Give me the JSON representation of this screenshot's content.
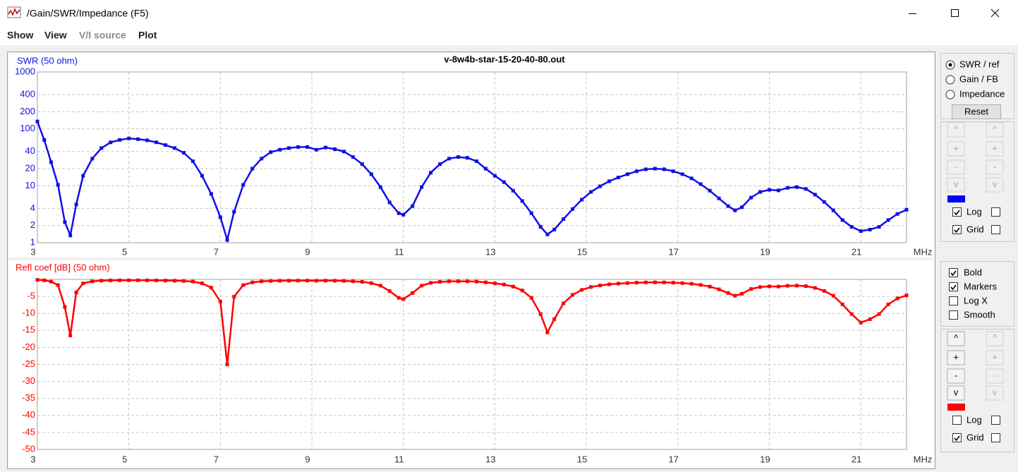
{
  "window": {
    "title": "/Gain/SWR/Impedance (F5)",
    "menu": [
      {
        "label": "Show",
        "enabled": true
      },
      {
        "label": "View",
        "enabled": true
      },
      {
        "label": "V/I source",
        "enabled": false
      },
      {
        "label": "Plot",
        "enabled": true
      }
    ]
  },
  "chart_data": [
    {
      "type": "line",
      "title": "v-8w4b-star-15-20-40-80.out",
      "y_label": "SWR (50 ohm)",
      "x_label": "MHz",
      "color": "#1010e6",
      "log": true,
      "grid": true,
      "xlim": [
        3,
        22
      ],
      "xticks": [
        3,
        5,
        7,
        9,
        11,
        13,
        15,
        17,
        19,
        21
      ],
      "ylim": [
        1,
        1000
      ],
      "yticks": [
        1,
        2,
        4,
        10,
        20,
        40,
        100,
        200,
        400,
        1000
      ],
      "x": [
        3,
        3.15,
        3.3,
        3.45,
        3.6,
        3.72,
        3.85,
        4,
        4.2,
        4.4,
        4.6,
        4.8,
        5,
        5.2,
        5.4,
        5.6,
        5.8,
        6,
        6.2,
        6.4,
        6.6,
        6.8,
        7,
        7.15,
        7.3,
        7.5,
        7.7,
        7.9,
        8.1,
        8.3,
        8.5,
        8.7,
        8.9,
        9.1,
        9.3,
        9.5,
        9.7,
        9.9,
        10.1,
        10.3,
        10.5,
        10.7,
        10.9,
        11,
        11.2,
        11.4,
        11.6,
        11.8,
        12,
        12.2,
        12.4,
        12.6,
        12.8,
        13,
        13.2,
        13.4,
        13.6,
        13.8,
        14,
        14.15,
        14.3,
        14.5,
        14.7,
        14.9,
        15.1,
        15.3,
        15.5,
        15.7,
        15.9,
        16.1,
        16.3,
        16.5,
        16.7,
        16.9,
        17.1,
        17.3,
        17.5,
        17.7,
        17.9,
        18.1,
        18.25,
        18.4,
        18.6,
        18.8,
        19,
        19.2,
        19.4,
        19.6,
        19.8,
        20,
        20.2,
        20.4,
        20.6,
        20.8,
        21,
        21.2,
        21.4,
        21.6,
        21.8,
        22
      ],
      "values": [
        135,
        64,
        26,
        10.4,
        2.3,
        1.35,
        4.7,
        15,
        30,
        46,
        58,
        64,
        68,
        66,
        63,
        58,
        52,
        46,
        38,
        27,
        15,
        7.2,
        2.8,
        1.12,
        3.5,
        10.4,
        20,
        30,
        39,
        43,
        46,
        48,
        48,
        43,
        47,
        44,
        40,
        32,
        24,
        16,
        9.5,
        5.1,
        3.3,
        3.1,
        4.4,
        9.5,
        17,
        24,
        30,
        32,
        31,
        27,
        20,
        15,
        11.6,
        8.2,
        5.4,
        3.3,
        1.9,
        1.4,
        1.7,
        2.6,
        3.9,
        5.7,
        7.8,
        9.8,
        12,
        14,
        16,
        18,
        19.5,
        20,
        19.5,
        18,
        16,
        13.5,
        10.7,
        8.2,
        6.0,
        4.4,
        3.7,
        4.2,
        6.2,
        7.8,
        8.5,
        8.3,
        9.2,
        9.5,
        8.8,
        7.0,
        5.2,
        3.7,
        2.5,
        1.9,
        1.6,
        1.7,
        1.9,
        2.5,
        3.2,
        3.8
      ]
    },
    {
      "type": "line",
      "y_label": "Refl coef [dB] (50 ohm)",
      "x_label": "MHz",
      "color": "#ff0000",
      "log": false,
      "grid": true,
      "xlim": [
        3,
        22
      ],
      "xticks": [
        3,
        5,
        7,
        9,
        11,
        13,
        15,
        17,
        19,
        21
      ],
      "ylim": [
        -50,
        0
      ],
      "yticks": [
        -50,
        -45,
        -40,
        -35,
        -30,
        -25,
        -20,
        -15,
        -10,
        -5
      ],
      "x": [
        3,
        3.15,
        3.3,
        3.45,
        3.6,
        3.72,
        3.85,
        4,
        4.2,
        4.4,
        4.6,
        4.8,
        5,
        5.2,
        5.4,
        5.6,
        5.8,
        6,
        6.2,
        6.4,
        6.6,
        6.8,
        7,
        7.15,
        7.3,
        7.5,
        7.7,
        7.9,
        8.1,
        8.3,
        8.5,
        8.7,
        8.9,
        9.1,
        9.3,
        9.5,
        9.7,
        9.9,
        10.1,
        10.3,
        10.5,
        10.7,
        10.9,
        11,
        11.2,
        11.4,
        11.6,
        11.8,
        12,
        12.2,
        12.4,
        12.6,
        12.8,
        13,
        13.2,
        13.4,
        13.6,
        13.8,
        14,
        14.15,
        14.3,
        14.5,
        14.7,
        14.9,
        15.1,
        15.3,
        15.5,
        15.7,
        15.9,
        16.1,
        16.3,
        16.5,
        16.7,
        16.9,
        17.1,
        17.3,
        17.5,
        17.7,
        17.9,
        18.1,
        18.25,
        18.4,
        18.6,
        18.8,
        19,
        19.2,
        19.4,
        19.6,
        19.8,
        20,
        20.2,
        20.4,
        20.6,
        20.8,
        21,
        21.2,
        21.4,
        21.6,
        21.8,
        22
      ],
      "values": [
        -0.13,
        -0.27,
        -0.67,
        -1.67,
        -8.1,
        -16.5,
        -3.8,
        -1.16,
        -0.58,
        -0.38,
        -0.3,
        -0.27,
        -0.26,
        -0.26,
        -0.28,
        -0.3,
        -0.34,
        -0.38,
        -0.46,
        -0.64,
        -1.16,
        -2.43,
        -6.5,
        -25,
        -5.1,
        -1.67,
        -0.87,
        -0.58,
        -0.45,
        -0.4,
        -0.38,
        -0.36,
        -0.36,
        -0.4,
        -0.37,
        -0.39,
        -0.43,
        -0.55,
        -0.72,
        -1.09,
        -1.84,
        -3.45,
        -5.43,
        -5.8,
        -4.0,
        -1.84,
        -1.02,
        -0.72,
        -0.58,
        -0.55,
        -0.56,
        -0.64,
        -0.87,
        -1.16,
        -1.51,
        -2.12,
        -3.25,
        -5.43,
        -10.2,
        -15.6,
        -11.7,
        -7.05,
        -4.55,
        -3.09,
        -2.24,
        -1.78,
        -1.45,
        -1.24,
        -1.09,
        -0.97,
        -0.89,
        -0.87,
        -0.89,
        -0.97,
        -1.09,
        -1.29,
        -1.63,
        -2.12,
        -2.92,
        -4.0,
        -4.82,
        -4.22,
        -2.83,
        -2.24,
        -2.06,
        -2.1,
        -1.89,
        -1.84,
        -1.98,
        -2.5,
        -3.39,
        -4.82,
        -7.36,
        -10.2,
        -12.7,
        -11.7,
        -10.2,
        -7.36,
        -5.6,
        -4.7
      ]
    }
  ],
  "controls": {
    "plot_mode": {
      "options": [
        "SWR / ref",
        "Gain / FB",
        "Impedance"
      ],
      "selected": 0
    },
    "reset": "Reset",
    "arrows": [
      "^",
      "+",
      "-",
      "v"
    ],
    "log_label": "Log",
    "grid_label": "Grid",
    "upper": {
      "enabled": [
        false,
        false
      ],
      "color": "#0000ff",
      "log": [
        true,
        false
      ],
      "grid": [
        true,
        false
      ]
    },
    "lower": {
      "enabled": [
        true,
        false
      ],
      "color": "#ff0000",
      "log": [
        false,
        false
      ],
      "grid": [
        true,
        false
      ]
    },
    "options": [
      {
        "label": "Bold",
        "checked": true
      },
      {
        "label": "Markers",
        "checked": true
      },
      {
        "label": "Log X",
        "checked": false
      },
      {
        "label": "Smooth",
        "checked": false
      }
    ]
  }
}
